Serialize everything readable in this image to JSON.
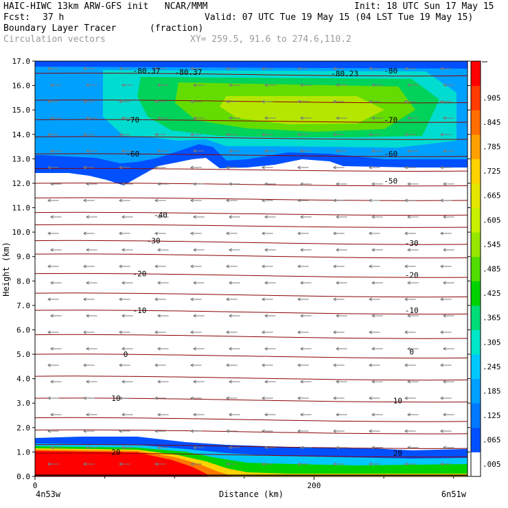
{
  "header": {
    "title_left": "HAIC-HIWC 13km ARW-GFS init   NCAR/MMM",
    "init": "Init: 18 UTC Sun 17 May 15",
    "fcst_label": "Fcst:",
    "fcst_value": "37 h",
    "valid": "Valid: 07 UTC Tue 19 May 15 (04 LST Tue 19 May 15)",
    "field_name": "Boundary Layer Tracer",
    "field_units": "(fraction)",
    "vectors": "Circulation vectors",
    "xy": "XY= 259.5, 91.6 to 274.6,110.2"
  },
  "chart_data": {
    "type": "heatmap",
    "ylabel": "Height (km)",
    "xlabel": "Distance (km)",
    "ylim": [
      0,
      17
    ],
    "xlim": [
      0,
      310
    ],
    "yticks": [
      "0.0",
      "1.0",
      "2.0",
      "3.0",
      "4.0",
      "5.0",
      "6.0",
      "7.0",
      "8.0",
      "9.0",
      "10.0",
      "11.0",
      "12.0",
      "13.0",
      "14.0",
      "15.0",
      "16.0",
      "17.0"
    ],
    "xticks": [
      {
        "value": 0,
        "label": "0"
      },
      {
        "value": 200,
        "label": "200"
      }
    ],
    "x_endpoint_labels": [
      "4n53w",
      "6n51w"
    ],
    "colorbar": {
      "labels": [
        ".005",
        ".065",
        ".125",
        ".185",
        ".245",
        ".305",
        ".365",
        ".425",
        ".485",
        ".545",
        ".605",
        ".665",
        ".725",
        ".785",
        ".845",
        ".905"
      ],
      "colors": [
        "#ffffff",
        "#0050ff",
        "#0078ff",
        "#00a0ff",
        "#00c8ff",
        "#00e6c8",
        "#00dc78",
        "#00d200",
        "#50dc00",
        "#96e600",
        "#c8f000",
        "#e6e600",
        "#ffd200",
        "#ffa000",
        "#ff6e00",
        "#ff3c00",
        "#ff0000"
      ]
    },
    "contour_labels": [
      {
        "x": 80,
        "y": 16.6,
        "text": "-80.37"
      },
      {
        "x": 110,
        "y": 16.55,
        "text": "-80.37"
      },
      {
        "x": 222,
        "y": 16.5,
        "text": "-80.23"
      },
      {
        "x": 255,
        "y": 16.6,
        "text": "-80"
      },
      {
        "x": 70,
        "y": 14.6,
        "text": "-70"
      },
      {
        "x": 255,
        "y": 14.6,
        "text": "-70"
      },
      {
        "x": 70,
        "y": 13.2,
        "text": "-60"
      },
      {
        "x": 255,
        "y": 13.2,
        "text": "-60"
      },
      {
        "x": 255,
        "y": 12.1,
        "text": "-50"
      },
      {
        "x": 90,
        "y": 10.7,
        "text": "-40"
      },
      {
        "x": 85,
        "y": 9.65,
        "text": "-30"
      },
      {
        "x": 270,
        "y": 9.55,
        "text": "-30"
      },
      {
        "x": 75,
        "y": 8.3,
        "text": "-20"
      },
      {
        "x": 270,
        "y": 8.25,
        "text": "-20"
      },
      {
        "x": 75,
        "y": 6.8,
        "text": "-10"
      },
      {
        "x": 270,
        "y": 6.8,
        "text": "-10"
      },
      {
        "x": 65,
        "y": 5.0,
        "text": "0"
      },
      {
        "x": 270,
        "y": 5.1,
        "text": "0"
      },
      {
        "x": 58,
        "y": 3.2,
        "text": "10"
      },
      {
        "x": 260,
        "y": 3.1,
        "text": "10"
      },
      {
        "x": 58,
        "y": 1.0,
        "text": "20"
      },
      {
        "x": 260,
        "y": 0.95,
        "text": "20"
      }
    ]
  }
}
